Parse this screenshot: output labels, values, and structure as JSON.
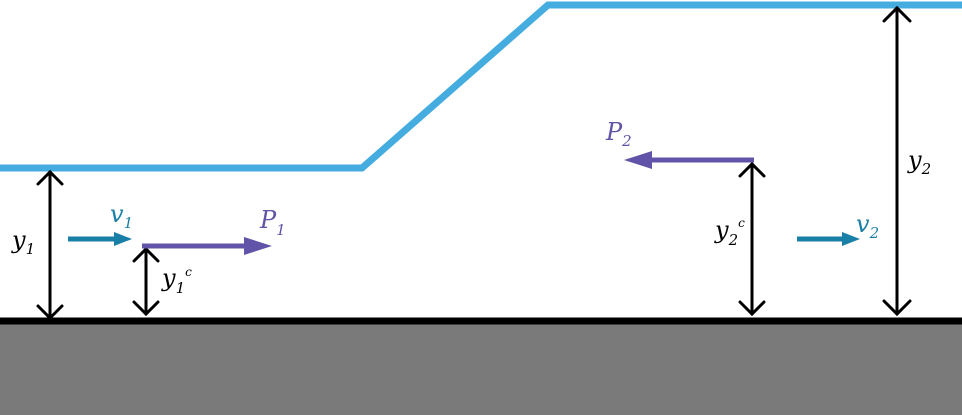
{
  "colors": {
    "water_surface": "#45ace0",
    "ground": "#7a7a7a",
    "ground_line": "#000000",
    "depth_arrow": "#000000",
    "velocity": "#1a7fa6",
    "pressure": "#6153a8"
  },
  "labels": {
    "y1": {
      "base": "y",
      "sub": "1"
    },
    "y2": {
      "base": "y",
      "sub": "2"
    },
    "v1": {
      "base": "v",
      "sub": "1"
    },
    "v2": {
      "base": "v",
      "sub": "2"
    },
    "P1": {
      "base": "P",
      "sub": "1"
    },
    "P2": {
      "base": "P",
      "sub": "2"
    },
    "y1c": {
      "base": "y",
      "sub": "1",
      "sup": "c"
    },
    "y2c": {
      "base": "y",
      "sub": "2",
      "sup": "c"
    }
  }
}
